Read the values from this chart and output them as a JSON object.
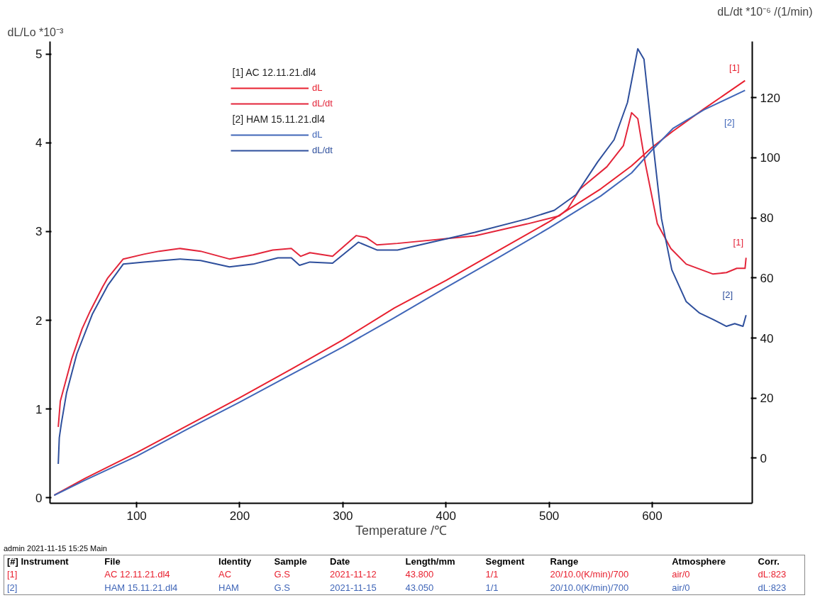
{
  "chart_data": {
    "type": "line",
    "xlabel": "Temperature /℃",
    "ylabel": "dL/Lo *10⁻³",
    "y2label": "dL/dt *10⁻⁶ /(1/min)",
    "xlim": [
      16,
      697
    ],
    "xticks": [
      100,
      200,
      300,
      400,
      500,
      600
    ],
    "ylim": [
      -0.06,
      5.14
    ],
    "yticks": [
      0,
      1,
      2,
      3,
      4,
      5
    ],
    "y2lim": [
      -15,
      138.7
    ],
    "y2ticks": [
      0,
      20,
      40,
      60,
      80,
      100,
      120
    ],
    "grid": false,
    "legend": "top left",
    "line_style": "solid",
    "series": [
      {
        "name": "dL",
        "color": "#e8202f",
        "x": [
          20,
          50,
          100,
          150,
          200,
          250,
          300,
          350,
          400,
          450,
          500,
          550,
          580,
          600,
          620,
          650,
          690
        ],
        "values": [
          0.03,
          0.22,
          0.51,
          0.82,
          1.13,
          1.45,
          1.78,
          2.14,
          2.45,
          2.78,
          3.11,
          3.48,
          3.74,
          3.95,
          4.13,
          4.38,
          4.7
        ]
      },
      {
        "name": "dL/dt",
        "axis": "y2",
        "color": "#e3253a",
        "x": [
          24,
          26,
          37,
          47,
          55,
          67,
          72,
          87,
          107,
          122,
          142,
          162,
          190,
          213,
          232,
          250,
          259,
          268,
          290,
          313,
          323,
          333,
          353,
          428,
          479,
          510,
          518,
          530,
          556,
          572,
          580,
          586,
          593,
          605,
          618,
          633,
          659,
          672,
          682,
          690,
          691
        ],
        "values": [
          10.4,
          19,
          33,
          43,
          49,
          57,
          60,
          66.3,
          67.9,
          68.9,
          69.8,
          68.9,
          66.3,
          67.7,
          69.3,
          69.8,
          67.2,
          68.4,
          67.2,
          74.1,
          73.4,
          71,
          71.5,
          74,
          78,
          80.7,
          83,
          89.6,
          97,
          104,
          115,
          113,
          98.6,
          78,
          69.8,
          64.6,
          61.3,
          61.8,
          63.2,
          63.2,
          66.7
        ]
      },
      {
        "name": "dL",
        "color": "#4066b8",
        "x": [
          20,
          50,
          100,
          150,
          200,
          250,
          300,
          350,
          400,
          450,
          500,
          550,
          580,
          600,
          620,
          650,
          690
        ],
        "values": [
          0.03,
          0.2,
          0.47,
          0.78,
          1.08,
          1.39,
          1.7,
          2.03,
          2.37,
          2.7,
          3.04,
          3.4,
          3.66,
          3.92,
          4.16,
          4.37,
          4.59
        ]
      },
      {
        "name": "dL/dt",
        "axis": "y2",
        "color": "#2e4f9c",
        "x": [
          24,
          25,
          27,
          32,
          42,
          57,
          72,
          87,
          107,
          142,
          162,
          190,
          213,
          237,
          250,
          258,
          268,
          290,
          315,
          333,
          353,
          428,
          479,
          505,
          526,
          547,
          563,
          576,
          586,
          592,
          601,
          609,
          619,
          633,
          646,
          659,
          672,
          680,
          688,
          691
        ],
        "values": [
          -1.9,
          6.8,
          11.6,
          21.7,
          34.7,
          47.9,
          57.5,
          64.6,
          65.3,
          66.3,
          65.8,
          63.7,
          64.6,
          66.7,
          66.7,
          64.2,
          65.3,
          64.9,
          71.9,
          69.3,
          69.3,
          75.2,
          79.7,
          82.5,
          87.7,
          98.6,
          106,
          118.4,
          136.3,
          132.8,
          104,
          79.7,
          62.7,
          52.1,
          48.3,
          46.2,
          43.9,
          44.8,
          43.9,
          47.6
        ]
      }
    ],
    "annotations": [
      "[1] AC 12.11.21.dl4",
      "[2] HAM 15.11.21.dl4",
      "[1]",
      "[2]",
      "[1]",
      "[2]",
      "admin   2021-11-15 15:25   Main",
      "[#] Instrument",
      "File",
      "Identity",
      "Sample",
      "Date",
      "Length/mm",
      "Segment",
      "Range",
      "Atmosphere",
      "Corr.",
      "[1]",
      "AC 12.11.21.dl4",
      "AC",
      "G.S",
      "2021-11-12",
      "43.800",
      "1/1",
      "20/10.0(K/min)/700",
      "air/0",
      "dL:823",
      "[2]",
      "HAM 15.11.21.dl4",
      "HAM",
      "G.S",
      "2021-11-15",
      "43.050",
      "1/1",
      "20/10.0(K/min)/700",
      "air/0",
      "dL:823"
    ]
  }
}
